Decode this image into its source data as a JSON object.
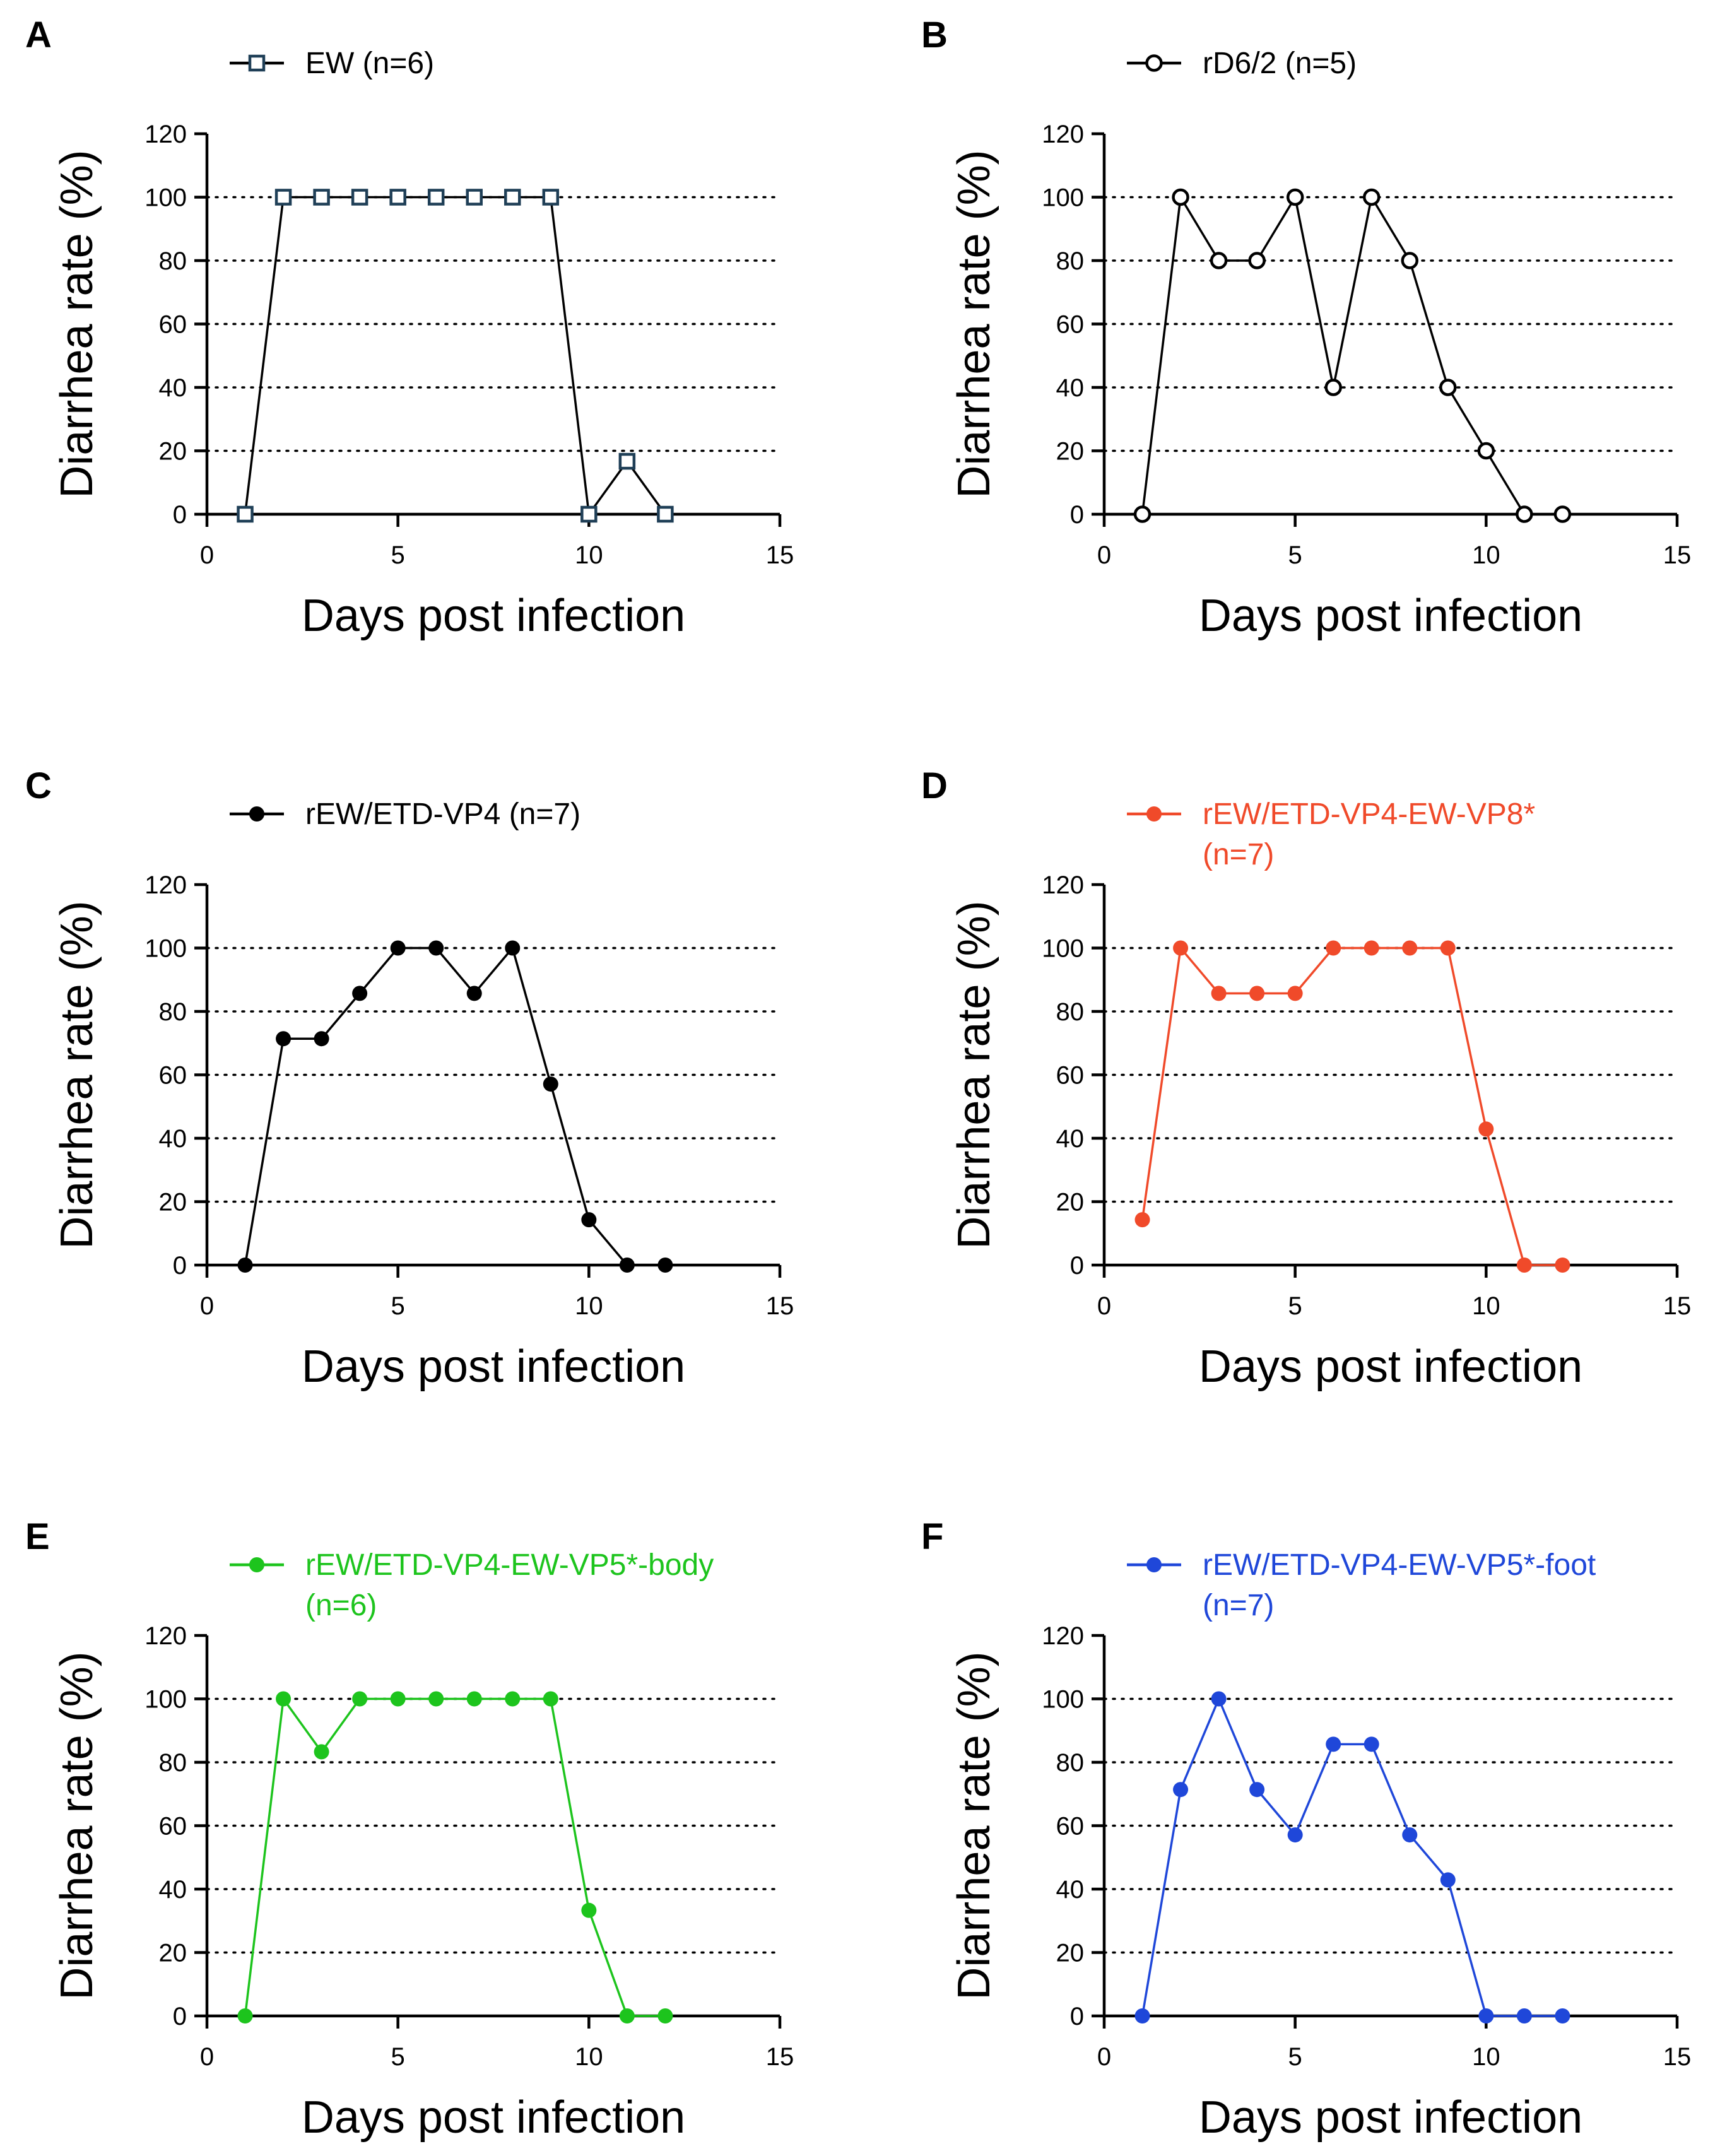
{
  "chart_data": [
    {
      "panel": "A",
      "type": "line",
      "title": "",
      "xlabel": "Days post infection",
      "ylabel": "Diarrhea rate (%)",
      "xlim": [
        0,
        15
      ],
      "ylim": [
        0,
        120
      ],
      "xticks": [
        "0",
        "5",
        "10",
        "15"
      ],
      "yticks": [
        "0",
        "20",
        "40",
        "60",
        "80",
        "100",
        "120"
      ],
      "grid": "horizontal dotted",
      "legend": "top",
      "series": [
        {
          "name": "EW (n=6)",
          "legend_lines": [
            "EW (n=6)"
          ],
          "color": "#000000",
          "marker_color": "#1f3f57",
          "marker": "open-square",
          "x": [
            1,
            2,
            3,
            4,
            5,
            6,
            7,
            8,
            9,
            10,
            11,
            12
          ],
          "y": [
            0,
            100,
            100,
            100,
            100,
            100,
            100,
            100,
            100,
            0,
            16.7,
            0
          ]
        }
      ]
    },
    {
      "panel": "B",
      "type": "line",
      "title": "",
      "xlabel": "Days post infection",
      "ylabel": "Diarrhea rate (%)",
      "xlim": [
        0,
        15
      ],
      "ylim": [
        0,
        120
      ],
      "xticks": [
        "0",
        "5",
        "10",
        "15"
      ],
      "yticks": [
        "0",
        "20",
        "40",
        "60",
        "80",
        "100",
        "120"
      ],
      "grid": "horizontal dotted",
      "legend": "top",
      "series": [
        {
          "name": "rD6/2 (n=5)",
          "legend_lines": [
            "rD6/2 (n=5)"
          ],
          "color": "#000000",
          "marker_color": "#000000",
          "marker": "open-circle",
          "x": [
            1,
            2,
            3,
            4,
            5,
            6,
            7,
            8,
            9,
            10,
            11,
            12
          ],
          "y": [
            0,
            100,
            80,
            80,
            100,
            40,
            100,
            80,
            40,
            20,
            0,
            0
          ]
        }
      ]
    },
    {
      "panel": "C",
      "type": "line",
      "title": "",
      "xlabel": "Days post infection",
      "ylabel": "Diarrhea rate (%)",
      "xlim": [
        0,
        15
      ],
      "ylim": [
        0,
        120
      ],
      "xticks": [
        "0",
        "5",
        "10",
        "15"
      ],
      "yticks": [
        "0",
        "20",
        "40",
        "60",
        "80",
        "100",
        "120"
      ],
      "grid": "horizontal dotted",
      "legend": "top",
      "series": [
        {
          "name": "rEW/ETD-VP4 (n=7)",
          "legend_lines": [
            "rEW/ETD-VP4 (n=7)"
          ],
          "color": "#000000",
          "marker_color": "#000000",
          "marker": "filled-circle",
          "x": [
            1,
            2,
            3,
            4,
            5,
            6,
            7,
            8,
            9,
            10,
            11,
            12
          ],
          "y": [
            0,
            71.4,
            71.4,
            85.7,
            100,
            100,
            85.7,
            100,
            57.1,
            14.3,
            0,
            0
          ]
        }
      ]
    },
    {
      "panel": "D",
      "type": "line",
      "title": "",
      "xlabel": "Days post infection",
      "ylabel": "Diarrhea rate (%)",
      "xlim": [
        0,
        15
      ],
      "ylim": [
        0,
        120
      ],
      "xticks": [
        "0",
        "5",
        "10",
        "15"
      ],
      "yticks": [
        "0",
        "20",
        "40",
        "60",
        "80",
        "100",
        "120"
      ],
      "grid": "horizontal dotted",
      "legend": "top",
      "series": [
        {
          "name": "rEW/ETD-VP4-EW-VP8* (n=7)",
          "legend_lines": [
            "rEW/ETD-VP4-EW-VP8*",
            "(n=7)"
          ],
          "color": "#f04a2a",
          "marker_color": "#f04a2a",
          "marker": "filled-circle",
          "x": [
            1,
            2,
            3,
            4,
            5,
            6,
            7,
            8,
            9,
            10,
            11,
            12
          ],
          "y": [
            14.3,
            100,
            85.7,
            85.7,
            85.7,
            100,
            100,
            100,
            100,
            42.9,
            0,
            0
          ]
        }
      ]
    },
    {
      "panel": "E",
      "type": "line",
      "title": "",
      "xlabel": "Days post infection",
      "ylabel": "Diarrhea rate (%)",
      "xlim": [
        0,
        15
      ],
      "ylim": [
        0,
        120
      ],
      "xticks": [
        "0",
        "5",
        "10",
        "15"
      ],
      "yticks": [
        "0",
        "20",
        "40",
        "60",
        "80",
        "100",
        "120"
      ],
      "grid": "horizontal dotted",
      "legend": "top",
      "series": [
        {
          "name": "rEW/ETD-VP4-EW-VP5*-body (n=6)",
          "legend_lines": [
            "rEW/ETD-VP4-EW-VP5*-body",
            "(n=6)"
          ],
          "color": "#1dc41d",
          "marker_color": "#1dc41d",
          "marker": "filled-circle",
          "x": [
            1,
            2,
            3,
            4,
            5,
            6,
            7,
            8,
            9,
            10,
            11,
            12
          ],
          "y": [
            0,
            100,
            83.3,
            100,
            100,
            100,
            100,
            100,
            100,
            33.3,
            0,
            0
          ]
        }
      ]
    },
    {
      "panel": "F",
      "type": "line",
      "title": "",
      "xlabel": "Days post infection",
      "ylabel": "Diarrhea rate (%)",
      "xlim": [
        0,
        15
      ],
      "ylim": [
        0,
        120
      ],
      "xticks": [
        "0",
        "5",
        "10",
        "15"
      ],
      "yticks": [
        "0",
        "20",
        "40",
        "60",
        "80",
        "100",
        "120"
      ],
      "grid": "horizontal dotted",
      "legend": "top",
      "series": [
        {
          "name": "rEW/ETD-VP4-EW-VP5*-foot (n=7)",
          "legend_lines": [
            "rEW/ETD-VP4-EW-VP5*-foot",
            "(n=7)"
          ],
          "color": "#1f47d9",
          "marker_color": "#1f47d9",
          "marker": "filled-circle",
          "x": [
            1,
            2,
            3,
            4,
            5,
            6,
            7,
            8,
            9,
            10,
            11,
            12
          ],
          "y": [
            0,
            71.4,
            100,
            71.4,
            57.1,
            85.7,
            85.7,
            57.1,
            42.9,
            0,
            0,
            0
          ]
        }
      ]
    }
  ]
}
